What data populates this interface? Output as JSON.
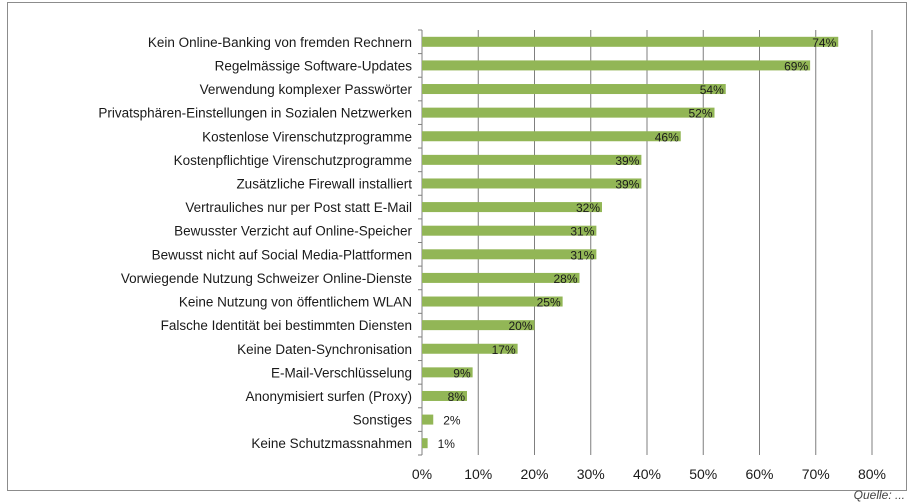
{
  "chart_data": {
    "type": "bar",
    "orientation": "horizontal",
    "title": "",
    "xlabel": "",
    "ylabel": "",
    "xlim": [
      0,
      80
    ],
    "x_ticks": [
      "0%",
      "10%",
      "20%",
      "30%",
      "40%",
      "50%",
      "60%",
      "70%",
      "80%"
    ],
    "grid": true,
    "bar_color": "#92b656",
    "categories": [
      "Kein Online-Banking von fremden Rechnern",
      "Regelmässige Software-Updates",
      "Verwendung komplexer Passwörter",
      "Privatsphären-Einstellungen in Sozialen Netzwerken",
      "Kostenlose Virenschutzprogramme",
      "Kostenpflichtige Virenschutzprogramme",
      "Zusätzliche Firewall installiert",
      "Vertrauliches nur per Post statt  E-Mail",
      "Bewusster Verzicht auf Online-Speicher",
      "Bewusst nicht auf Social Media-Plattformen",
      "Vorwiegende Nutzung Schweizer Online-Dienste",
      "Keine Nutzung von öffentlichem WLAN",
      "Falsche Identität bei bestimmten Diensten",
      "Keine Daten-Synchronisation",
      "E-Mail-Verschlüsselung",
      "Anonymisiert surfen (Proxy)",
      "Sonstiges",
      "Keine Schutzmassnahmen"
    ],
    "values": [
      74,
      69,
      54,
      52,
      46,
      39,
      39,
      32,
      31,
      31,
      28,
      25,
      20,
      17,
      9,
      8,
      2,
      1
    ],
    "data_labels": [
      "74%",
      "69%",
      "54%",
      "52%",
      "46%",
      "39%",
      "39%",
      "32%",
      "31%",
      "31%",
      "28%",
      "25%",
      "20%",
      "17%",
      "9%",
      "8%",
      "2%",
      "1%"
    ]
  },
  "source_note": "Quelle: ..."
}
